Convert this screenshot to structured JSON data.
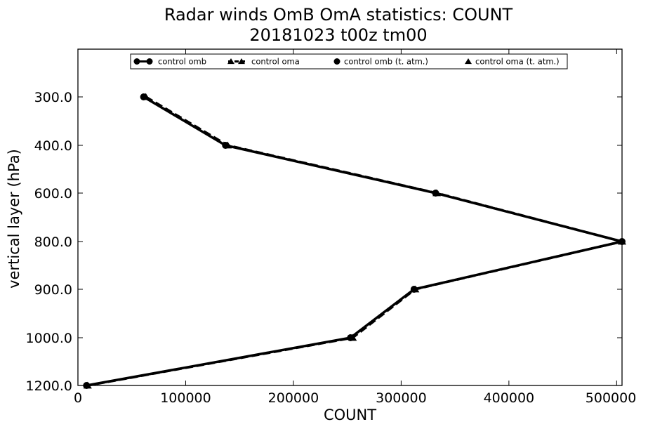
{
  "chart_data": {
    "type": "line",
    "title": [
      "Radar winds OmB OmA statistics: COUNT",
      "20181023 t00z tm00"
    ],
    "xlabel": "COUNT",
    "ylabel": "vertical layer (hPa)",
    "xlim": [
      0,
      505000
    ],
    "y_categories": [
      "300.0",
      "400.0",
      "600.0",
      "800.0",
      "900.0",
      "1000.0",
      "1200.0"
    ],
    "y_axis_inverted": true,
    "xticks": [
      0,
      100000,
      200000,
      300000,
      400000,
      500000
    ],
    "xtick_labels": [
      "0",
      "100000",
      "200000",
      "300000",
      "400000",
      "500000"
    ],
    "grid": false,
    "legend_position": "top-center",
    "series": [
      {
        "name": "control omb",
        "style": "solid",
        "marker": "circle",
        "color": "#000000",
        "values": [
          61000,
          137000,
          332000,
          505000,
          312000,
          253000,
          8000
        ]
      },
      {
        "name": "control oma",
        "style": "dashed",
        "marker": "triangle",
        "color": "#000000",
        "values": [
          63000,
          139000,
          333000,
          505000,
          313000,
          255000,
          9000
        ]
      },
      {
        "name": "control omb (t. atm.)",
        "style": "none",
        "marker": "circle",
        "color": "#000000",
        "values": []
      },
      {
        "name": "control oma (t. atm.)",
        "style": "none",
        "marker": "triangle",
        "color": "#000000",
        "values": []
      }
    ]
  }
}
